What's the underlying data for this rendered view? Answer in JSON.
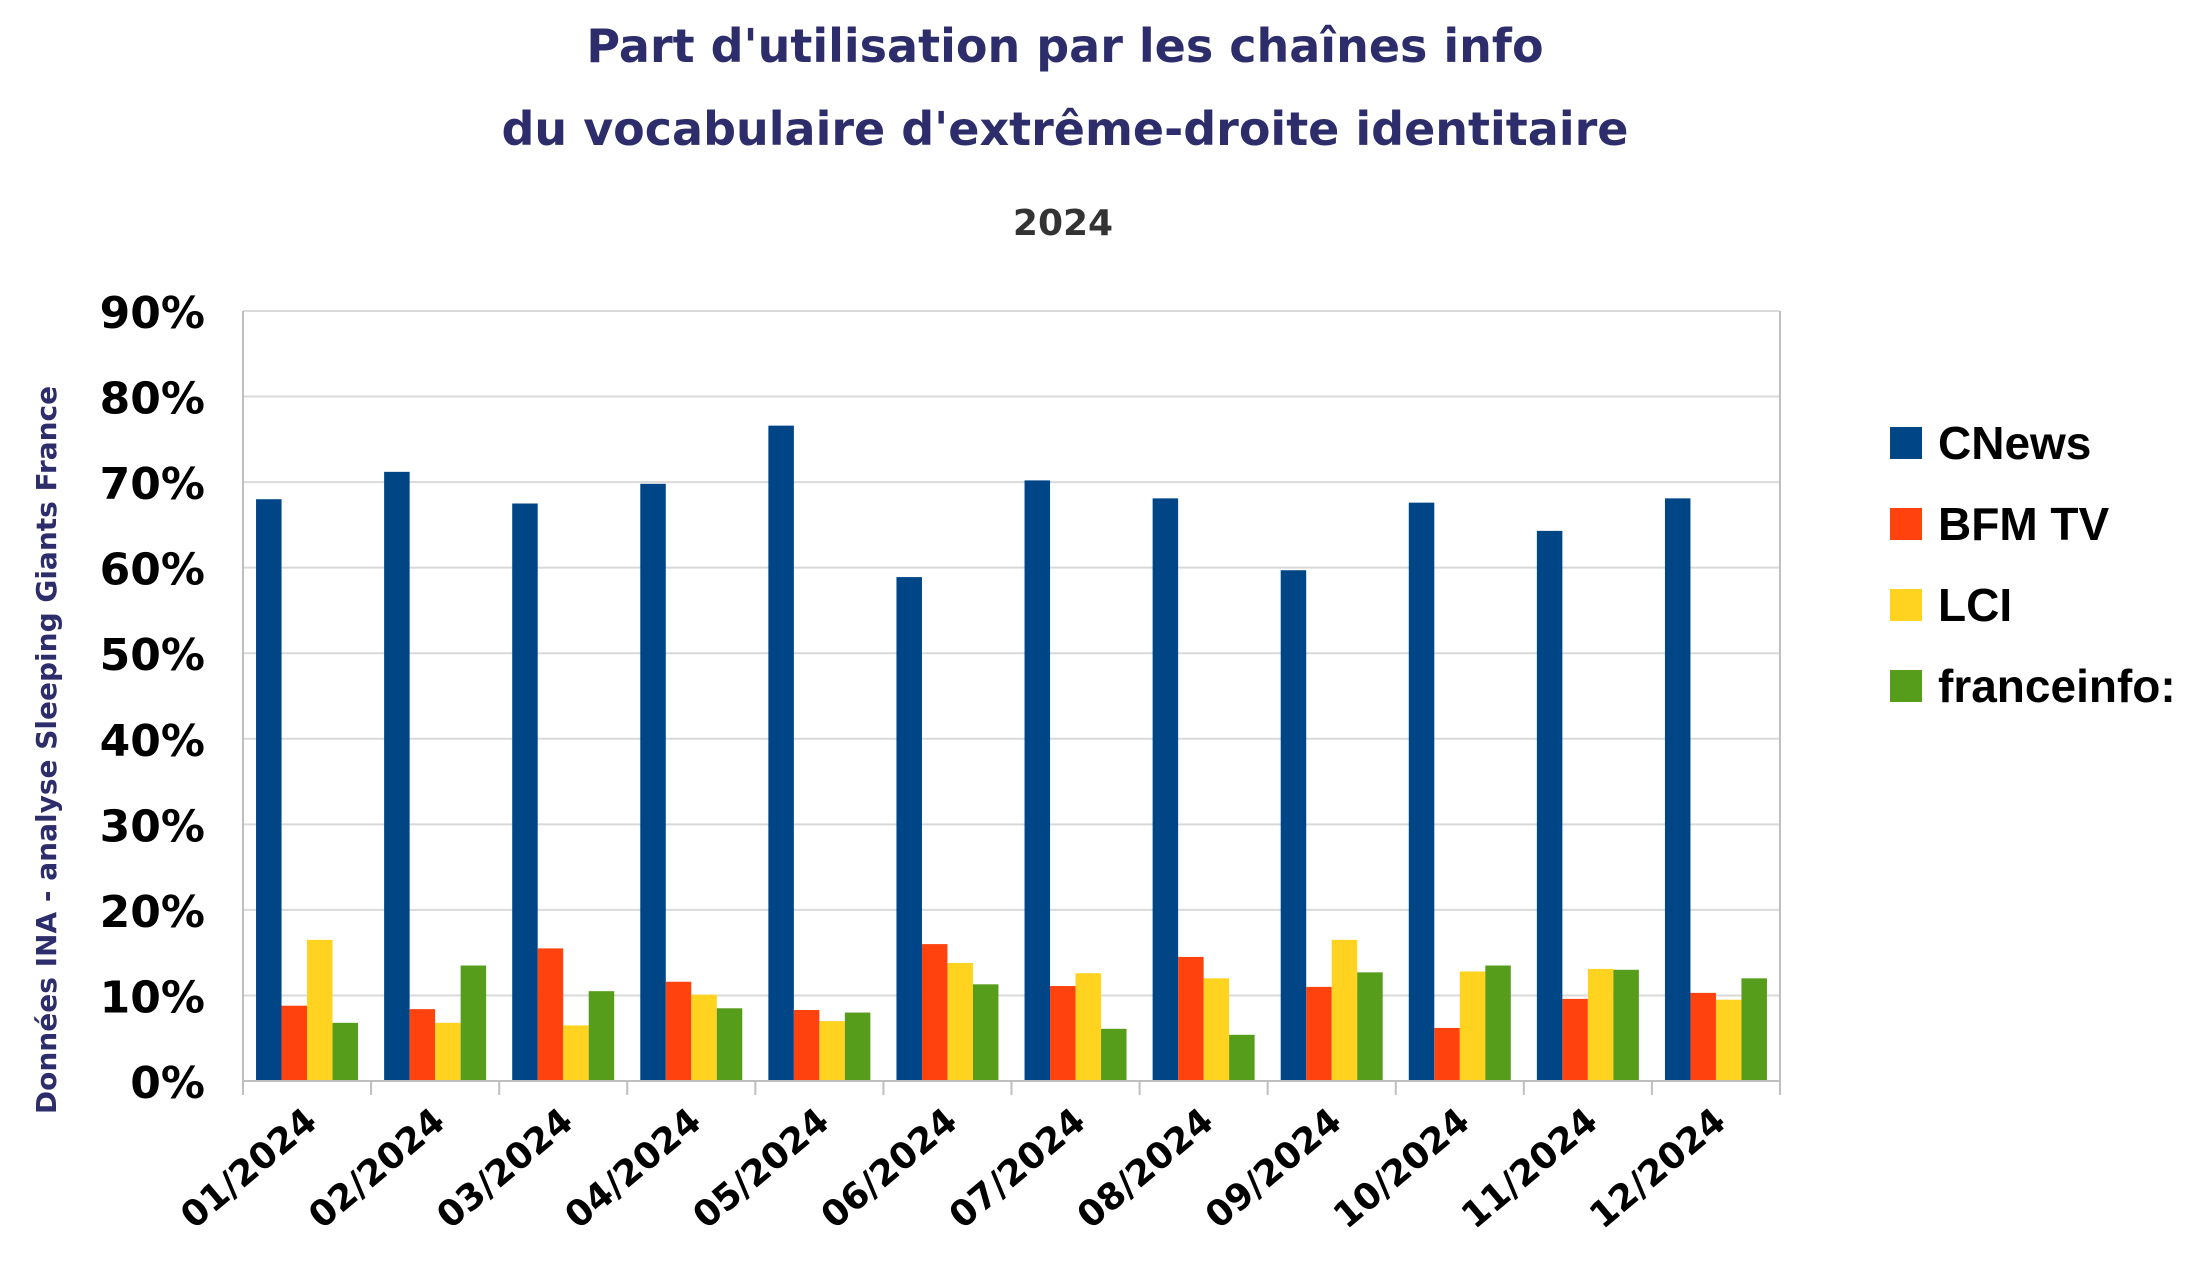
{
  "chart_data": {
    "type": "bar",
    "title": "Part d'utilisation par les chaînes info",
    "title_line2": "du vocabulaire d'extrême-droite identitaire",
    "subtitle": "2024",
    "source": "Données INA - analyse Sleeping Giants France",
    "xlabel": "",
    "ylabel": "",
    "ylim": [
      0,
      90
    ],
    "yticks": [
      0,
      10,
      20,
      30,
      40,
      50,
      60,
      70,
      80,
      90
    ],
    "ytick_labels": [
      "0%",
      "10%",
      "20%",
      "30%",
      "40%",
      "50%",
      "60%",
      "70%",
      "80%",
      "90%"
    ],
    "grid": true,
    "legend_position": "right",
    "categories": [
      "01/2024",
      "02/2024",
      "03/2024",
      "04/2024",
      "05/2024",
      "06/2024",
      "07/2024",
      "08/2024",
      "09/2024",
      "10/2024",
      "11/2024",
      "12/2024"
    ],
    "series": [
      {
        "name": "CNews",
        "color": "#004586",
        "values": [
          68,
          71.2,
          67.5,
          69.8,
          76.6,
          58.9,
          70.2,
          68.1,
          59.7,
          67.6,
          64.3,
          68.1
        ]
      },
      {
        "name": "BFM TV",
        "color": "#ff420e",
        "values": [
          8.8,
          8.4,
          15.5,
          11.6,
          8.3,
          16,
          11.1,
          14.5,
          11,
          6.2,
          9.6,
          10.3
        ]
      },
      {
        "name": "LCI",
        "color": "#ffd320",
        "values": [
          16.5,
          6.8,
          6.5,
          10.1,
          7,
          13.8,
          12.6,
          12,
          16.5,
          12.8,
          13.1,
          9.5
        ]
      },
      {
        "name": "franceinfo:",
        "color": "#579d1c",
        "values": [
          6.8,
          13.5,
          10.5,
          8.5,
          8,
          11.3,
          6.1,
          5.4,
          12.7,
          13.5,
          13,
          12
        ]
      }
    ]
  }
}
